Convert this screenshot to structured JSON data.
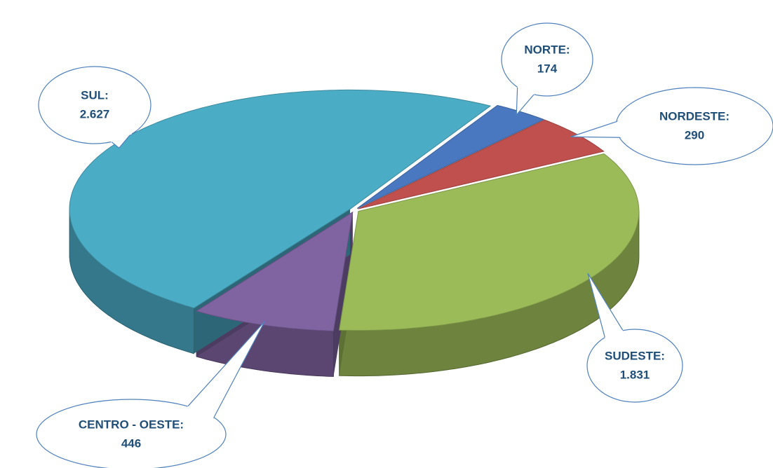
{
  "chart_data": {
    "type": "pie",
    "categories": [
      "NORTE:",
      "NORDESTE:",
      "SUDESTE:",
      "CENTRO - OESTE:",
      "SUL:"
    ],
    "values": [
      174,
      290,
      1831,
      446,
      2627
    ],
    "value_labels": [
      "174",
      "290",
      "1.831",
      "446",
      "2.627"
    ],
    "colors": [
      "#4a78c0",
      "#c0504d",
      "#9bbb59",
      "#8064a2",
      "#4bacc6"
    ]
  }
}
